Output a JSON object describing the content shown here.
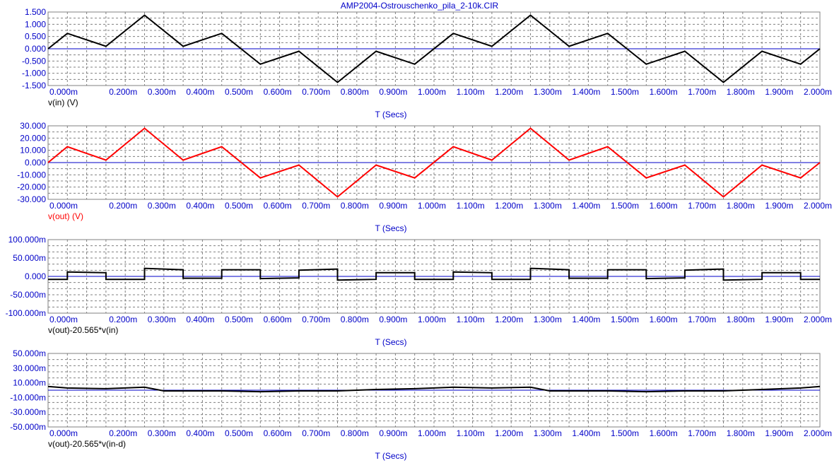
{
  "title": "AMP2004-Ostrouschenko_pila_2-10k.CIR",
  "x_axis": {
    "label": "T (Secs)",
    "ticks": [
      "0.000m",
      "0.200m",
      "0.300m",
      "0.400m",
      "0.500m",
      "0.600m",
      "0.700m",
      "0.800m",
      "0.900m",
      "1.000m",
      "1.100m",
      "1.200m",
      "1.300m",
      "1.400m",
      "1.500m",
      "1.600m",
      "1.700m",
      "1.800m",
      "1.900m",
      "2.000m"
    ],
    "tick_values": [
      0,
      0.2,
      0.3,
      0.4,
      0.5,
      0.6,
      0.7,
      0.8,
      0.9,
      1.0,
      1.1,
      1.2,
      1.3,
      1.4,
      1.5,
      1.6,
      1.7,
      1.8,
      1.9,
      2.0
    ]
  },
  "colors": {
    "axis_text": "#0000c8",
    "zero_line": "#0000c8",
    "grid": "#808080",
    "trace_black": "#000000",
    "trace_red": "#ff0000"
  },
  "chart_data": [
    {
      "type": "line",
      "ylabel": "v(in) (V)",
      "ylim": [
        -1.5,
        1.5
      ],
      "yticks": [
        "1.500",
        "1.000",
        "0.500",
        "0.000",
        "-0.500",
        "-1.000",
        "-1.500"
      ],
      "ytick_values": [
        1.5,
        1.0,
        0.5,
        0.0,
        -0.5,
        -1.0,
        -1.5
      ],
      "x": [
        0,
        0.05,
        0.15,
        0.25,
        0.35,
        0.45,
        0.55,
        0.65,
        0.75,
        0.85,
        0.95,
        1.05,
        1.15,
        1.25,
        1.35,
        1.45,
        1.55,
        1.65,
        1.75,
        1.85,
        1.95,
        2.0
      ],
      "series": [
        {
          "name": "v(in) (V)",
          "color": "#000000",
          "values": [
            0,
            0.63,
            0.1,
            1.37,
            0.1,
            0.63,
            -0.63,
            -0.1,
            -1.37,
            -0.1,
            -0.63,
            0.63,
            0.1,
            1.37,
            0.1,
            0.63,
            -0.63,
            -0.1,
            -1.37,
            -0.1,
            -0.63,
            0
          ]
        }
      ]
    },
    {
      "type": "line",
      "ylabel": "v(out) (V)",
      "ylim": [
        -30,
        30
      ],
      "yticks": [
        "30.000",
        "20.000",
        "10.000",
        "0.000",
        "-10.000",
        "-20.000",
        "-30.000"
      ],
      "ytick_values": [
        30,
        20,
        10,
        0,
        -10,
        -20,
        -30
      ],
      "x": [
        0,
        0.05,
        0.15,
        0.25,
        0.35,
        0.45,
        0.55,
        0.65,
        0.75,
        0.85,
        0.95,
        1.05,
        1.15,
        1.25,
        1.35,
        1.45,
        1.55,
        1.65,
        1.75,
        1.85,
        1.95,
        2.0
      ],
      "series": [
        {
          "name": "v(out) (V)",
          "color": "#ff0000",
          "values": [
            0,
            13,
            2,
            28,
            2,
            13,
            -12.5,
            -2,
            -28,
            -2,
            -12.5,
            13,
            2,
            28,
            2,
            13,
            -12.5,
            -2,
            -28,
            -2,
            -12.5,
            0
          ]
        }
      ]
    },
    {
      "type": "line",
      "ylabel": "v(out)-20.565*v(in)",
      "ylim": [
        -100,
        100
      ],
      "yticks": [
        "100.000m",
        "50.000m",
        "0.000",
        "-50.000m",
        "-100.000m"
      ],
      "ytick_values": [
        100,
        50,
        0,
        -50,
        -100
      ],
      "x": [
        0,
        0.05,
        0.05,
        0.15,
        0.15,
        0.25,
        0.25,
        0.35,
        0.35,
        0.45,
        0.45,
        0.55,
        0.55,
        0.65,
        0.65,
        0.75,
        0.75,
        0.85,
        0.85,
        0.95,
        0.95,
        1.05,
        1.05,
        1.15,
        1.15,
        1.25,
        1.25,
        1.35,
        1.35,
        1.45,
        1.45,
        1.55,
        1.55,
        1.65,
        1.65,
        1.75,
        1.75,
        1.85,
        1.85,
        1.95,
        1.95,
        2.0
      ],
      "series": [
        {
          "name": "v(out)-20.565*v(in)",
          "color": "#000000",
          "values": [
            -8,
            -8,
            12,
            10,
            -8,
            -8,
            22,
            18,
            -5,
            -5,
            18,
            18,
            -6,
            -4,
            17,
            20,
            -10,
            -8,
            10,
            10,
            -8,
            -8,
            12,
            10,
            -8,
            -8,
            22,
            18,
            -5,
            -5,
            18,
            18,
            -6,
            -4,
            17,
            20,
            -10,
            -8,
            10,
            10,
            -8,
            -8
          ]
        }
      ]
    },
    {
      "type": "line",
      "ylabel": "v(out)-20.565*v(in-d)",
      "ylim": [
        -50,
        50
      ],
      "yticks": [
        "50.000m",
        "30.000m",
        "10.000m",
        "-10.000m",
        "-30.000m",
        "-50.000m"
      ],
      "ytick_values": [
        50,
        30,
        10,
        -10,
        -30,
        -50
      ],
      "x": [
        0,
        0.05,
        0.15,
        0.25,
        0.3,
        0.35,
        0.45,
        0.55,
        0.65,
        0.75,
        0.85,
        0.95,
        1.05,
        1.15,
        1.25,
        1.3,
        1.35,
        1.45,
        1.55,
        1.65,
        1.75,
        1.85,
        1.95,
        2.0
      ],
      "series": [
        {
          "name": "v(out)-20.565*v(in-d)",
          "color": "#000000",
          "values": [
            5,
            3,
            2,
            4,
            -1,
            -1,
            -1,
            -2,
            -1,
            -1,
            1,
            2,
            4,
            3,
            4,
            -1,
            -1,
            -1,
            -2,
            -1,
            -1,
            1,
            3,
            5
          ]
        }
      ]
    }
  ]
}
